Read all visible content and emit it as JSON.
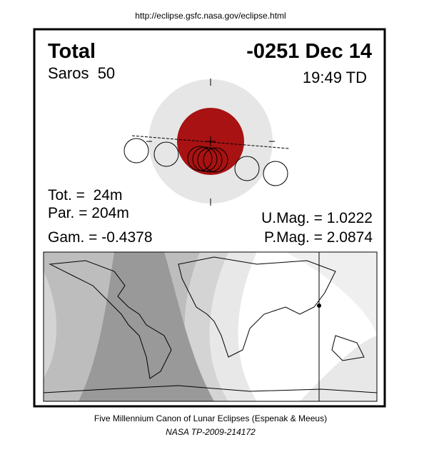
{
  "header": {
    "url": "http://eclipse.gsfc.nasa.gov/eclipse.html"
  },
  "panel": {
    "eclipse_type": "Total",
    "date": "-0251 Dec 14",
    "saros": "Saros  50",
    "time": "19:49 TD",
    "totality": "Tot. =  24m",
    "partiality": "Par. = 204m",
    "gamma": "Gam. = -0.4378",
    "umbral_magnitude": "U.Mag. = 1.0222",
    "penumbral_magnitude": "P.Mag. = 2.0874"
  },
  "footer": {
    "credit": "Five Millennium Canon of Lunar Eclipses (Espenak & Meeus)",
    "publication": "NASA TP-2009-214172"
  }
}
